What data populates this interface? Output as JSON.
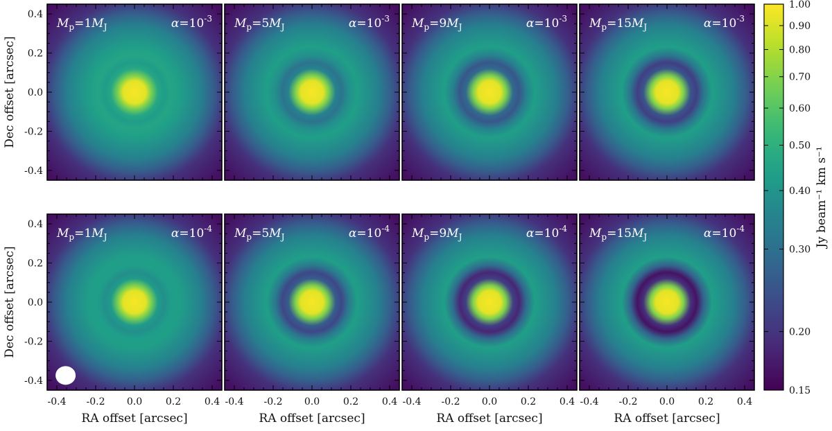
{
  "chart_data": {
    "type": "heatmap",
    "grid": {
      "rows": 2,
      "cols": 4
    },
    "panels": [
      {
        "row": 0,
        "col": 0,
        "mp_label": "M_p = 1 M_J",
        "alpha_label": "α = 10^-3",
        "Mp": 1,
        "alpha_exp": -3,
        "gap_depth": 0.05
      },
      {
        "row": 0,
        "col": 1,
        "mp_label": "M_p = 5 M_J",
        "alpha_label": "α = 10^-3",
        "Mp": 5,
        "alpha_exp": -3,
        "gap_depth": 0.35
      },
      {
        "row": 0,
        "col": 2,
        "mp_label": "M_p = 9 M_J",
        "alpha_label": "α = 10^-3",
        "Mp": 9,
        "alpha_exp": -3,
        "gap_depth": 0.55
      },
      {
        "row": 0,
        "col": 3,
        "mp_label": "M_p = 15 M_J",
        "alpha_label": "α = 10^-3",
        "Mp": 15,
        "alpha_exp": -3,
        "gap_depth": 0.7
      },
      {
        "row": 1,
        "col": 0,
        "mp_label": "M_p = 1 M_J",
        "alpha_label": "α = 10^-4",
        "Mp": 1,
        "alpha_exp": -4,
        "gap_depth": 0.15
      },
      {
        "row": 1,
        "col": 1,
        "mp_label": "M_p = 5 M_J",
        "alpha_label": "α = 10^-4",
        "Mp": 5,
        "alpha_exp": -4,
        "gap_depth": 0.65
      },
      {
        "row": 1,
        "col": 2,
        "mp_label": "M_p = 9 M_J",
        "alpha_label": "α = 10^-4",
        "Mp": 9,
        "alpha_exp": -4,
        "gap_depth": 0.85
      },
      {
        "row": 1,
        "col": 3,
        "mp_label": "M_p = 15 M_J",
        "alpha_label": "α = 10^-4",
        "Mp": 15,
        "alpha_exp": -4,
        "gap_depth": 0.95
      }
    ],
    "xlabel": "RA offset [arcsec]",
    "ylabel": "Dec offset [arcsec]",
    "xlim": [
      -0.45,
      0.45
    ],
    "ylim": [
      -0.45,
      0.45
    ],
    "x_ticks": [
      -0.4,
      -0.2,
      0.0,
      0.2,
      0.4
    ],
    "x_tick_labels": [
      "-0.4",
      "-0.2",
      "0.0",
      "0.2",
      "0.4"
    ],
    "y_ticks": [
      0.4,
      0.2,
      0.0,
      -0.2,
      -0.4
    ],
    "y_tick_labels": [
      "0.4",
      "0.2",
      "0.0",
      "-0.2",
      "-0.4"
    ],
    "colorbar": {
      "label": "Jy beam⁻¹ km s⁻¹",
      "scale": "log",
      "range": [
        0.15,
        1.0
      ],
      "ticks": [
        1.0,
        0.9,
        0.8,
        0.7,
        0.6,
        0.5,
        0.4,
        0.3,
        0.2,
        0.15
      ],
      "tick_labels": [
        "1.00",
        "0.90",
        "0.80",
        "0.70",
        "0.60",
        "0.50",
        "0.40",
        "0.30",
        "0.20",
        "0.15"
      ],
      "colormap": "viridis"
    },
    "beam": {
      "panel_index": 4,
      "color": "#ffffff"
    },
    "grid_lines": false
  }
}
